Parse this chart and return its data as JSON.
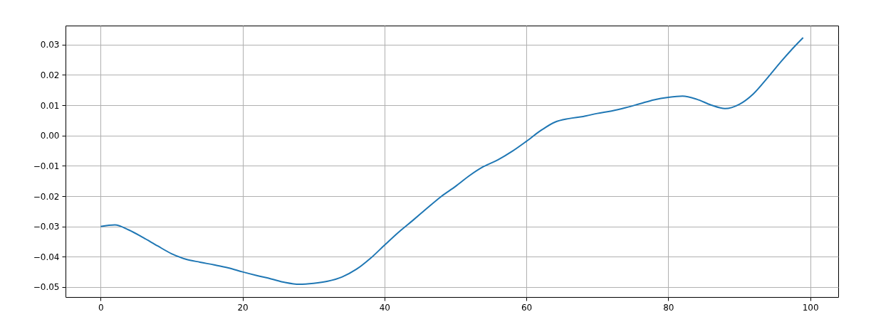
{
  "chart_data": {
    "type": "line",
    "x": [
      0,
      2,
      4,
      6,
      8,
      10,
      12,
      14,
      16,
      18,
      20,
      22,
      24,
      26,
      28,
      30,
      32,
      34,
      36,
      38,
      40,
      42,
      44,
      46,
      48,
      50,
      52,
      54,
      56,
      58,
      60,
      62,
      64,
      66,
      68,
      70,
      72,
      74,
      76,
      78,
      80,
      82,
      84,
      86,
      88,
      90,
      92,
      94,
      96,
      98,
      99
    ],
    "series": [
      {
        "color": "#1f77b4",
        "values": [
          -0.03,
          -0.0295,
          -0.0312,
          -0.0337,
          -0.0364,
          -0.039,
          -0.0408,
          -0.0418,
          -0.0427,
          -0.0437,
          -0.045,
          -0.0462,
          -0.0473,
          -0.0485,
          -0.0491,
          -0.0488,
          -0.0481,
          -0.0467,
          -0.0442,
          -0.0406,
          -0.0362,
          -0.0319,
          -0.028,
          -0.024,
          -0.0201,
          -0.0168,
          -0.0132,
          -0.0102,
          -0.008,
          -0.0052,
          -0.0019,
          0.0016,
          0.0044,
          0.0056,
          0.0063,
          0.0073,
          0.0081,
          0.0092,
          0.0105,
          0.0118,
          0.0126,
          0.013,
          0.012,
          0.0101,
          0.0089,
          0.0103,
          0.0138,
          0.0191,
          0.0247,
          0.0299,
          0.0323
        ]
      }
    ],
    "xlim": [
      -4.95,
      103.95
    ],
    "xticks": [
      0,
      20,
      40,
      60,
      80,
      100
    ],
    "ylim": [
      -0.0533,
      0.0363
    ],
    "yticks": [
      {
        "value": -0.05,
        "label": "−0.05"
      },
      {
        "value": -0.04,
        "label": "−0.04"
      },
      {
        "value": -0.03,
        "label": "−0.03"
      },
      {
        "value": -0.02,
        "label": "−0.02"
      },
      {
        "value": -0.01,
        "label": "−0.01"
      },
      {
        "value": 0,
        "label": "0.00"
      },
      {
        "value": 0.01,
        "label": "0.01"
      },
      {
        "value": 0.02,
        "label": "0.02"
      },
      {
        "value": 0.03,
        "label": "0.03"
      }
    ],
    "grid": true
  }
}
